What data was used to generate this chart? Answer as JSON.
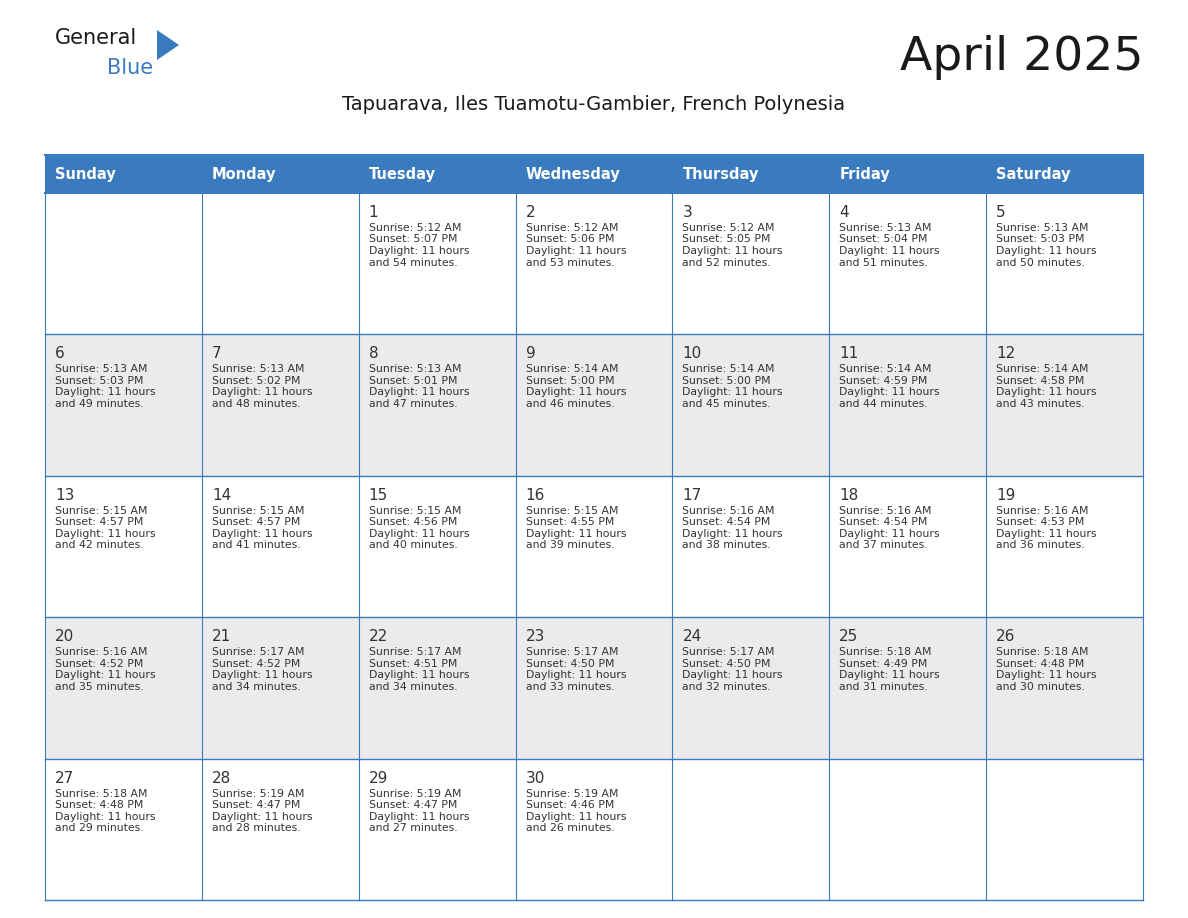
{
  "title": "April 2025",
  "subtitle": "Tapuarava, Iles Tuamotu-Gambier, French Polynesia",
  "header_bg_color": "#3A7ABF",
  "header_text_color": "#FFFFFF",
  "cell_bg_even": "#EBEBEB",
  "cell_bg_odd": "#FFFFFF",
  "border_color": "#3A7ABF",
  "text_color": "#333333",
  "days_of_week": [
    "Sunday",
    "Monday",
    "Tuesday",
    "Wednesday",
    "Thursday",
    "Friday",
    "Saturday"
  ],
  "calendar_data": [
    [
      {
        "day": "",
        "sunrise": "",
        "sunset": "",
        "daylight_mins": ""
      },
      {
        "day": "",
        "sunrise": "",
        "sunset": "",
        "daylight_mins": ""
      },
      {
        "day": "1",
        "sunrise": "5:12 AM",
        "sunset": "5:07 PM",
        "daylight_mins": "54 minutes."
      },
      {
        "day": "2",
        "sunrise": "5:12 AM",
        "sunset": "5:06 PM",
        "daylight_mins": "53 minutes."
      },
      {
        "day": "3",
        "sunrise": "5:12 AM",
        "sunset": "5:05 PM",
        "daylight_mins": "52 minutes."
      },
      {
        "day": "4",
        "sunrise": "5:13 AM",
        "sunset": "5:04 PM",
        "daylight_mins": "51 minutes."
      },
      {
        "day": "5",
        "sunrise": "5:13 AM",
        "sunset": "5:03 PM",
        "daylight_mins": "50 minutes."
      }
    ],
    [
      {
        "day": "6",
        "sunrise": "5:13 AM",
        "sunset": "5:03 PM",
        "daylight_mins": "49 minutes."
      },
      {
        "day": "7",
        "sunrise": "5:13 AM",
        "sunset": "5:02 PM",
        "daylight_mins": "48 minutes."
      },
      {
        "day": "8",
        "sunrise": "5:13 AM",
        "sunset": "5:01 PM",
        "daylight_mins": "47 minutes."
      },
      {
        "day": "9",
        "sunrise": "5:14 AM",
        "sunset": "5:00 PM",
        "daylight_mins": "46 minutes."
      },
      {
        "day": "10",
        "sunrise": "5:14 AM",
        "sunset": "5:00 PM",
        "daylight_mins": "45 minutes."
      },
      {
        "day": "11",
        "sunrise": "5:14 AM",
        "sunset": "4:59 PM",
        "daylight_mins": "44 minutes."
      },
      {
        "day": "12",
        "sunrise": "5:14 AM",
        "sunset": "4:58 PM",
        "daylight_mins": "43 minutes."
      }
    ],
    [
      {
        "day": "13",
        "sunrise": "5:15 AM",
        "sunset": "4:57 PM",
        "daylight_mins": "42 minutes."
      },
      {
        "day": "14",
        "sunrise": "5:15 AM",
        "sunset": "4:57 PM",
        "daylight_mins": "41 minutes."
      },
      {
        "day": "15",
        "sunrise": "5:15 AM",
        "sunset": "4:56 PM",
        "daylight_mins": "40 minutes."
      },
      {
        "day": "16",
        "sunrise": "5:15 AM",
        "sunset": "4:55 PM",
        "daylight_mins": "39 minutes."
      },
      {
        "day": "17",
        "sunrise": "5:16 AM",
        "sunset": "4:54 PM",
        "daylight_mins": "38 minutes."
      },
      {
        "day": "18",
        "sunrise": "5:16 AM",
        "sunset": "4:54 PM",
        "daylight_mins": "37 minutes."
      },
      {
        "day": "19",
        "sunrise": "5:16 AM",
        "sunset": "4:53 PM",
        "daylight_mins": "36 minutes."
      }
    ],
    [
      {
        "day": "20",
        "sunrise": "5:16 AM",
        "sunset": "4:52 PM",
        "daylight_mins": "35 minutes."
      },
      {
        "day": "21",
        "sunrise": "5:17 AM",
        "sunset": "4:52 PM",
        "daylight_mins": "34 minutes."
      },
      {
        "day": "22",
        "sunrise": "5:17 AM",
        "sunset": "4:51 PM",
        "daylight_mins": "34 minutes."
      },
      {
        "day": "23",
        "sunrise": "5:17 AM",
        "sunset": "4:50 PM",
        "daylight_mins": "33 minutes."
      },
      {
        "day": "24",
        "sunrise": "5:17 AM",
        "sunset": "4:50 PM",
        "daylight_mins": "32 minutes."
      },
      {
        "day": "25",
        "sunrise": "5:18 AM",
        "sunset": "4:49 PM",
        "daylight_mins": "31 minutes."
      },
      {
        "day": "26",
        "sunrise": "5:18 AM",
        "sunset": "4:48 PM",
        "daylight_mins": "30 minutes."
      }
    ],
    [
      {
        "day": "27",
        "sunrise": "5:18 AM",
        "sunset": "4:48 PM",
        "daylight_mins": "29 minutes."
      },
      {
        "day": "28",
        "sunrise": "5:19 AM",
        "sunset": "4:47 PM",
        "daylight_mins": "28 minutes."
      },
      {
        "day": "29",
        "sunrise": "5:19 AM",
        "sunset": "4:47 PM",
        "daylight_mins": "27 minutes."
      },
      {
        "day": "30",
        "sunrise": "5:19 AM",
        "sunset": "4:46 PM",
        "daylight_mins": "26 minutes."
      },
      {
        "day": "",
        "sunrise": "",
        "sunset": "",
        "daylight_mins": ""
      },
      {
        "day": "",
        "sunrise": "",
        "sunset": "",
        "daylight_mins": ""
      },
      {
        "day": "",
        "sunrise": "",
        "sunset": "",
        "daylight_mins": ""
      }
    ]
  ],
  "logo_text_general": "General",
  "logo_text_blue": "Blue",
  "logo_color_general": "#1a1a1a",
  "logo_color_blue": "#3A7ABF",
  "logo_triangle_color": "#3A7ABF",
  "fig_width": 11.88,
  "fig_height": 9.18,
  "dpi": 100
}
